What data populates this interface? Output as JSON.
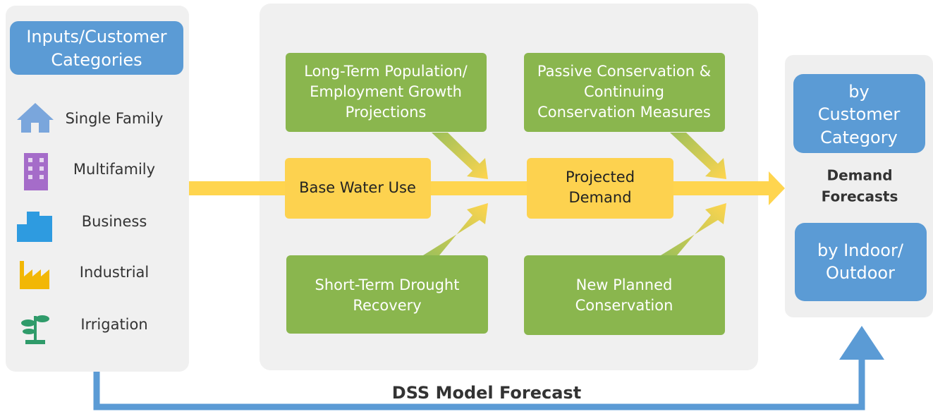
{
  "inputs": {
    "title_lines": [
      "Inputs/Customer",
      "Categories"
    ],
    "categories": [
      "Single Family",
      "Multifamily",
      "Business",
      "Industrial",
      "Irrigation"
    ]
  },
  "model": {
    "factors": [
      {
        "lines": [
          "Long-Term Population/",
          "Employment Growth",
          "Projections"
        ]
      },
      {
        "lines": [
          "Passive Conservation &",
          "Continuing",
          "Conservation Measures"
        ]
      },
      {
        "lines": [
          "Short-Term Drought",
          "Recovery"
        ]
      },
      {
        "lines": [
          "New Planned",
          "Conservation"
        ]
      }
    ],
    "base": {
      "lines": [
        "Base Water Use"
      ]
    },
    "projected": {
      "lines": [
        "Projected",
        "Demand"
      ]
    }
  },
  "outputs": {
    "customer": {
      "lines": [
        "by",
        "Customer",
        "Category"
      ]
    },
    "label_lines": [
      "Demand",
      "Forecasts"
    ],
    "indoor": {
      "lines": [
        "by Indoor/",
        "Outdoor"
      ]
    }
  },
  "bottom_label": "DSS Model Forecast"
}
